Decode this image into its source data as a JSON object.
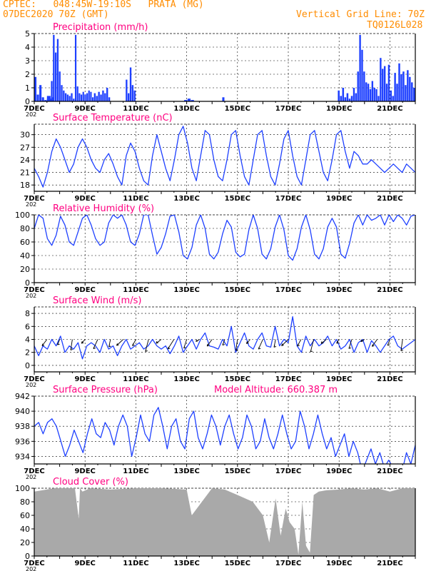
{
  "header": {
    "line1_left": "CPTEC:   048:45W-19:10S   PRATA (MG)",
    "line2_left": "07DEC2020 70Z (GMT)",
    "line1_right": "Vertical Grid Line: 70Z",
    "line2_right": "TQ0126L028",
    "accent": "#ff8c00",
    "title_color": "#ff0080",
    "series_color": "#1e40ff",
    "cloud_color": "#a9a9a9"
  },
  "x_axis": {
    "tick_labels": [
      "7DEC",
      "9DEC",
      "11DEC",
      "13DEC",
      "15DEC",
      "17DEC",
      "19DEC",
      "21DEC"
    ],
    "year_stub": "202",
    "range_days": [
      0,
      15
    ]
  },
  "chart_data": [
    {
      "id": "precip",
      "type": "bar",
      "title": "Precipitation (mm/h)",
      "ylim": [
        0,
        5
      ],
      "yticks": [
        0,
        1,
        2,
        3,
        4,
        5
      ],
      "bands": [
        {
          "start": 0.0,
          "end": 0.8,
          "values": [
            1.8,
            0.5,
            1.2,
            0.3,
            0.1,
            0.4,
            0.2,
            0.3
          ]
        },
        {
          "start": 0.5,
          "end": 1.6,
          "values": [
            0.2,
            0.4,
            1.5,
            4.9,
            3.6,
            4.6,
            2.2,
            1.2,
            0.8,
            0.6,
            0.5,
            0.4,
            0.6,
            0.2
          ]
        },
        {
          "start": 1.6,
          "end": 2.35,
          "values": [
            4.9,
            1.1,
            0.6,
            0.5,
            0.7,
            0.5,
            0.6,
            0.8,
            0.7,
            0.3
          ]
        },
        {
          "start": 2.35,
          "end": 3.0,
          "values": [
            0.6,
            0.4,
            0.7,
            0.5,
            0.8,
            0.6,
            1.0,
            0.3
          ]
        },
        {
          "start": 3.6,
          "end": 4.0,
          "values": [
            1.6,
            0.6,
            2.5,
            1.2,
            0.8
          ]
        },
        {
          "start": 5.9,
          "end": 6.3,
          "values": [
            0.1,
            0.2,
            0.1
          ]
        },
        {
          "start": 7.4,
          "end": 7.5,
          "values": [
            0.3
          ]
        },
        {
          "start": 11.95,
          "end": 12.55,
          "values": [
            0.8,
            0.4,
            1.0,
            0.3,
            0.6,
            0.2,
            0.4
          ]
        },
        {
          "start": 12.55,
          "end": 13.6,
          "values": [
            1.0,
            0.6,
            2.2,
            4.9,
            3.8,
            2.2,
            1.4,
            1.3,
            0.9,
            1.5,
            1.0,
            0.9,
            0.4
          ]
        },
        {
          "start": 13.6,
          "end": 14.25,
          "values": [
            3.2,
            2.4,
            2.6,
            1.3,
            2.7,
            0.8,
            0.4,
            2.1
          ]
        },
        {
          "start": 14.25,
          "end": 15.0,
          "values": [
            1.3,
            2.8,
            2.0,
            2.2,
            1.2,
            2.3,
            1.8,
            1.4,
            1.0
          ]
        }
      ]
    },
    {
      "id": "temp",
      "type": "line",
      "title": "Surface Temperature (nC)",
      "ylim": [
        16.5,
        32.5
      ],
      "yticks": [
        18,
        21,
        24,
        27,
        30
      ],
      "y": [
        22,
        20,
        17.5,
        21,
        26,
        29,
        27,
        24,
        21,
        23,
        27,
        29,
        27,
        24,
        22,
        21,
        24,
        25.5,
        23,
        20,
        18,
        25,
        28,
        26,
        22,
        19,
        18,
        25,
        30,
        26,
        22,
        19,
        24,
        30,
        32,
        28,
        22,
        19,
        25,
        31,
        30,
        24,
        20,
        19,
        24,
        30,
        31,
        25,
        20,
        18,
        24,
        30,
        31,
        25,
        20,
        18,
        23,
        29,
        31,
        25,
        20,
        18,
        24,
        30,
        31,
        26,
        21,
        19,
        24,
        30,
        31,
        26,
        22,
        26,
        25,
        23,
        23,
        24,
        23,
        22,
        21,
        22,
        23,
        22,
        21,
        23,
        22,
        21
      ]
    },
    {
      "id": "rh",
      "type": "line",
      "title": "Relative Humidity (%)",
      "ylim": [
        0,
        100
      ],
      "yticks": [
        0,
        20,
        40,
        60,
        80,
        100
      ],
      "y": [
        80,
        100,
        95,
        65,
        55,
        70,
        98,
        85,
        60,
        55,
        75,
        95,
        100,
        85,
        65,
        55,
        60,
        88,
        100,
        95,
        100,
        85,
        60,
        55,
        72,
        100,
        100,
        70,
        42,
        52,
        72,
        98,
        100,
        75,
        40,
        35,
        52,
        85,
        100,
        80,
        42,
        35,
        45,
        72,
        92,
        82,
        45,
        38,
        42,
        78,
        100,
        80,
        42,
        35,
        50,
        82,
        100,
        78,
        40,
        33,
        50,
        82,
        100,
        78,
        42,
        35,
        50,
        82,
        95,
        82,
        42,
        36,
        58,
        88,
        100,
        85,
        100,
        92,
        95,
        100,
        85,
        100,
        90,
        100,
        95,
        85,
        98,
        100
      ]
    },
    {
      "id": "wind",
      "type": "line",
      "title": "Surface Wind (m/s)",
      "ylim": [
        -1,
        9
      ],
      "yticks": [
        0,
        2,
        4,
        6,
        8
      ],
      "y": [
        3,
        1.5,
        3,
        2.5,
        4,
        3,
        4.5,
        2,
        3,
        2.5,
        3.5,
        1,
        3,
        3.5,
        3,
        2,
        4,
        2.5,
        3,
        1.5,
        3,
        4,
        2.5,
        3,
        3.5,
        2.5,
        3,
        4,
        3,
        2.5,
        3,
        1.8,
        3,
        4.5,
        2,
        3,
        4,
        2.5,
        4,
        5,
        3,
        2.8,
        2.5,
        4,
        3,
        6,
        2,
        3.5,
        5,
        3,
        2.5,
        4,
        5,
        3,
        2.8,
        6,
        3,
        4,
        3.5,
        7.5,
        3,
        2,
        4.5,
        3,
        4,
        3,
        3.5,
        4.5,
        3,
        4,
        2.5,
        3,
        4,
        2,
        3.5,
        4,
        2,
        3.8,
        3,
        2,
        3,
        4,
        4.5,
        3,
        2.5,
        3,
        3.5,
        4
      ]
    },
    {
      "id": "press",
      "type": "line",
      "title": "Surface Pressure (hPa)",
      "annotation": "Model Altitude: 660.387 m",
      "ylim": [
        933,
        942
      ],
      "yticks": [
        934,
        936,
        938,
        940,
        942
      ],
      "y": [
        938,
        938.5,
        937,
        938.5,
        939,
        938,
        936,
        934,
        935.5,
        937.5,
        936,
        934.5,
        937,
        939,
        937,
        936.5,
        938.5,
        937.5,
        935.5,
        938,
        939.5,
        938,
        934,
        936.5,
        939.5,
        937,
        936,
        939.5,
        940.5,
        938,
        935,
        938,
        939,
        936,
        935,
        939,
        940,
        936.5,
        935,
        937,
        939.5,
        938,
        935.5,
        938,
        939.5,
        937,
        935,
        936.5,
        939.5,
        938,
        935,
        936,
        939,
        936.5,
        935,
        937,
        939.5,
        937,
        935,
        936,
        940,
        938,
        935,
        937,
        939.5,
        937,
        935,
        936.5,
        934,
        935.5,
        937,
        934,
        936,
        934.5,
        932,
        933.5,
        935,
        933,
        934.5,
        932.5,
        933.5,
        932.5,
        933,
        932,
        934.5,
        933,
        935.5
      ]
    },
    {
      "id": "cloud",
      "type": "area",
      "title": "Cloud Cover (%)",
      "ylim": [
        0,
        100
      ],
      "yticks": [
        0,
        20,
        40,
        60,
        80,
        100
      ],
      "x": [
        0,
        0.8,
        1.6,
        1.75,
        1.8,
        1.9,
        2.2,
        3.0,
        4.0,
        5.0,
        6.0,
        6.2,
        7.0,
        7.5,
        8.0,
        8.6,
        9.0,
        9.25,
        9.5,
        9.7,
        9.9,
        10.05,
        10.25,
        10.4,
        10.55,
        10.7,
        10.85,
        11.0,
        11.2,
        11.5,
        12.0,
        12.5,
        13.0,
        13.5,
        14.0,
        14.5,
        15.0
      ],
      "values": [
        95,
        100,
        100,
        55,
        100,
        95,
        100,
        98,
        100,
        100,
        98,
        60,
        100,
        98,
        90,
        80,
        60,
        20,
        85,
        30,
        70,
        50,
        40,
        2,
        80,
        15,
        5,
        90,
        95,
        97,
        98,
        100,
        98,
        100,
        95,
        100,
        100
      ]
    }
  ]
}
